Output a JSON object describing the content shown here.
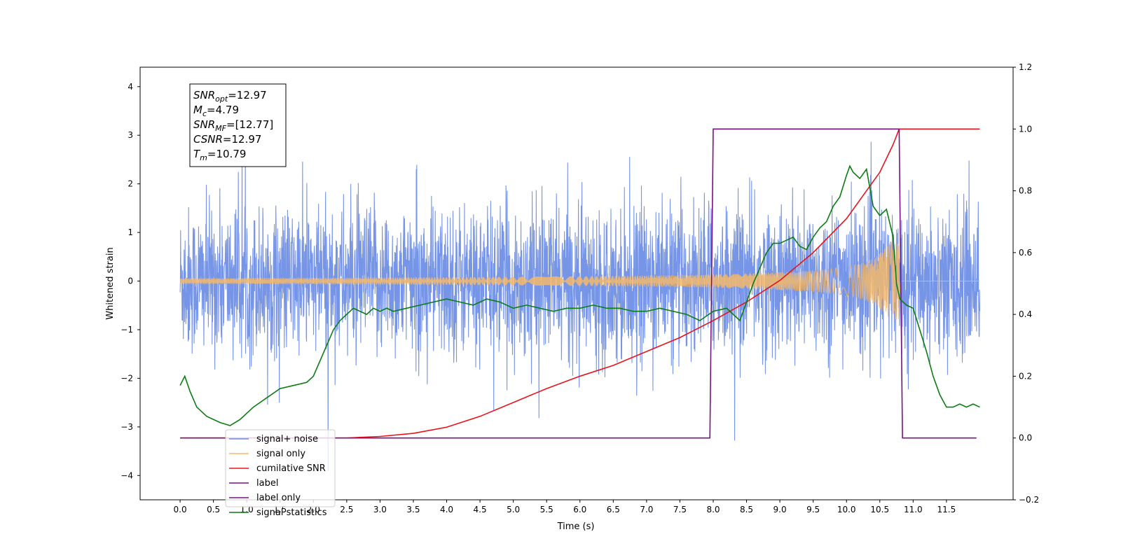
{
  "chart_data": {
    "type": "line",
    "xlabel": "Time (s)",
    "ylabel": "Whitened strain",
    "xlim": [
      -0.6,
      12.5
    ],
    "ylim": [
      -4.5,
      4.4
    ],
    "y2lim": [
      -0.2,
      1.2
    ],
    "x_ticks": [
      "0.0",
      "0.5",
      "1.0",
      "1.5",
      "2.0",
      "2.5",
      "3.0",
      "3.5",
      "4.0",
      "4.5",
      "5.0",
      "5.5",
      "6.0",
      "6.5",
      "7.0",
      "7.5",
      "8.0",
      "8.5",
      "9.0",
      "9.5",
      "10.0",
      "10.5",
      "11.0",
      "11.5"
    ],
    "y_ticks": [
      "4",
      "3",
      "2",
      "1",
      "0",
      "−1",
      "−2",
      "−3",
      "−4"
    ],
    "y2_ticks": [
      "1.2",
      "1.0",
      "0.8",
      "0.6",
      "0.4",
      "0.2",
      "0.0",
      "−0.2"
    ],
    "annotation": [
      {
        "sym": "SNR",
        "sub": "opt",
        "val": "=12.97"
      },
      {
        "sym": "M",
        "sub": "c",
        "val": "=4.79"
      },
      {
        "sym": "SNR",
        "sub": "MF",
        "val": "=[12.77]"
      },
      {
        "sym": "CSNR",
        "sub": "",
        "val": "=12.97"
      },
      {
        "sym": "T",
        "sub": "m",
        "val": "=10.79"
      }
    ],
    "legend_position": "lower-left",
    "series": [
      {
        "name": "signal+ noise",
        "color": "#6f8fe6",
        "axis": "left",
        "kind": "noise",
        "t_start": 0.0,
        "t_end": 12.0,
        "std": 0.75
      },
      {
        "name": "signal only",
        "color": "#f5b96a",
        "axis": "left",
        "kind": "chirp",
        "t_start": 0.0,
        "t_end": 10.79,
        "max_amplitude": 0.8
      },
      {
        "name": "cumilative SNR",
        "color": "#e8141c",
        "axis": "right",
        "x": [
          0.0,
          2.5,
          3.0,
          3.5,
          4.0,
          4.5,
          5.0,
          5.5,
          6.0,
          6.5,
          7.0,
          7.5,
          8.0,
          8.5,
          9.0,
          9.5,
          10.0,
          10.3,
          10.5,
          10.7,
          10.79,
          12.0
        ],
        "y": [
          0.0,
          0.0,
          0.005,
          0.015,
          0.035,
          0.07,
          0.115,
          0.16,
          0.2,
          0.235,
          0.28,
          0.325,
          0.38,
          0.44,
          0.51,
          0.6,
          0.71,
          0.8,
          0.86,
          0.95,
          1.0,
          1.0
        ]
      },
      {
        "name": "label",
        "color": "#7b0f86",
        "axis": "right",
        "x": [
          0.0,
          7.95,
          8.0,
          10.79,
          10.84,
          11.95
        ],
        "y": [
          0.0,
          0.0,
          1.0,
          1.0,
          0.0,
          0.0
        ]
      },
      {
        "name": "label only",
        "color": "#7b0f86",
        "axis": "right",
        "x": [],
        "y": []
      },
      {
        "name": "signal statistics",
        "color": "#0b7d12",
        "axis": "right",
        "x": [
          0.0,
          0.07,
          0.15,
          0.25,
          0.4,
          0.6,
          0.75,
          0.9,
          1.1,
          1.3,
          1.5,
          1.7,
          1.9,
          2.0,
          2.1,
          2.2,
          2.3,
          2.4,
          2.5,
          2.6,
          2.7,
          2.8,
          2.9,
          3.0,
          3.1,
          3.2,
          3.4,
          3.6,
          3.8,
          4.0,
          4.2,
          4.4,
          4.6,
          4.8,
          5.0,
          5.2,
          5.4,
          5.6,
          5.8,
          6.0,
          6.2,
          6.4,
          6.6,
          6.8,
          7.0,
          7.2,
          7.4,
          7.6,
          7.8,
          8.0,
          8.2,
          8.3,
          8.4,
          8.5,
          8.6,
          8.7,
          8.8,
          8.9,
          9.0,
          9.1,
          9.2,
          9.3,
          9.4,
          9.5,
          9.6,
          9.7,
          9.8,
          9.9,
          10.0,
          10.05,
          10.1,
          10.2,
          10.3,
          10.4,
          10.5,
          10.6,
          10.7,
          10.75,
          10.8,
          10.9,
          11.0,
          11.1,
          11.2,
          11.3,
          11.4,
          11.5,
          11.6,
          11.7,
          11.8,
          11.9,
          12.0
        ],
        "y": [
          0.17,
          0.2,
          0.15,
          0.1,
          0.07,
          0.05,
          0.04,
          0.06,
          0.1,
          0.13,
          0.16,
          0.17,
          0.18,
          0.2,
          0.25,
          0.3,
          0.35,
          0.38,
          0.4,
          0.42,
          0.41,
          0.4,
          0.42,
          0.41,
          0.42,
          0.41,
          0.42,
          0.43,
          0.44,
          0.45,
          0.44,
          0.43,
          0.45,
          0.44,
          0.42,
          0.43,
          0.42,
          0.41,
          0.42,
          0.42,
          0.43,
          0.42,
          0.42,
          0.41,
          0.41,
          0.42,
          0.41,
          0.4,
          0.38,
          0.41,
          0.42,
          0.4,
          0.38,
          0.44,
          0.5,
          0.55,
          0.6,
          0.63,
          0.63,
          0.64,
          0.65,
          0.62,
          0.61,
          0.65,
          0.68,
          0.7,
          0.75,
          0.78,
          0.85,
          0.88,
          0.86,
          0.84,
          0.87,
          0.75,
          0.72,
          0.74,
          0.65,
          0.5,
          0.45,
          0.43,
          0.42,
          0.35,
          0.28,
          0.2,
          0.14,
          0.1,
          0.1,
          0.11,
          0.1,
          0.11,
          0.1
        ]
      }
    ]
  }
}
